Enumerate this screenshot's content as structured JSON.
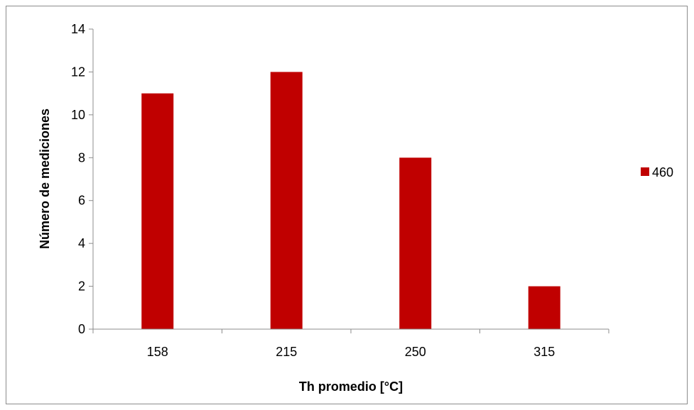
{
  "chart_data": {
    "type": "bar",
    "title": "",
    "xlabel": "Th promedio [°C]",
    "ylabel": "Número de mediciones",
    "categories": [
      "158",
      "215",
      "250",
      "315"
    ],
    "series": [
      {
        "name": "460",
        "values": [
          11,
          12,
          8,
          2
        ],
        "color": "#c00000"
      }
    ],
    "ylim": [
      0,
      14
    ],
    "yticks": [
      "0",
      "2",
      "4",
      "6",
      "8",
      "10",
      "12",
      "14"
    ],
    "grid": false,
    "legend_position": "right"
  }
}
